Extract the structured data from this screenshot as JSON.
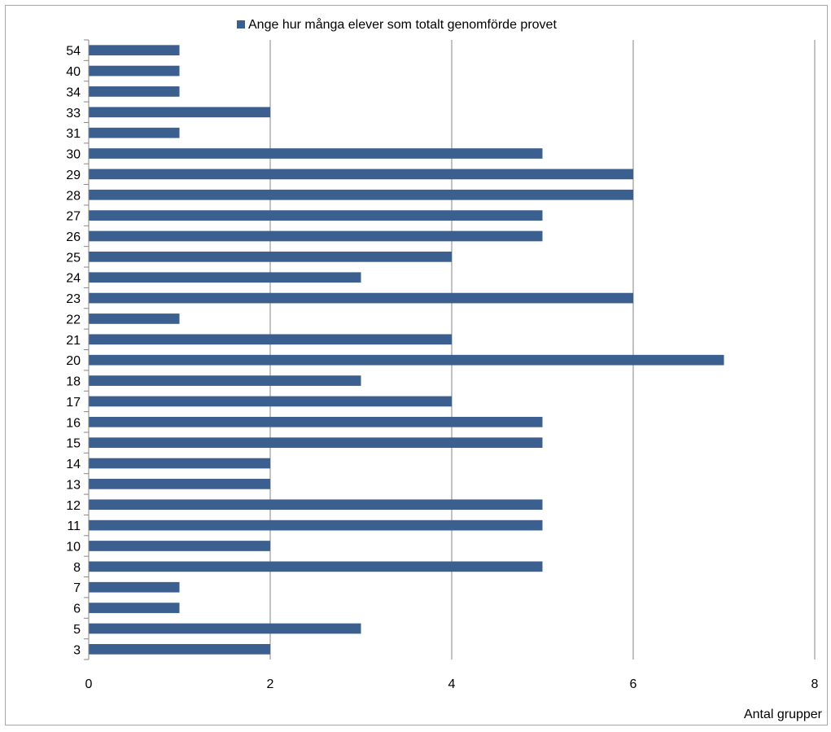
{
  "chart_data": {
    "type": "bar",
    "orientation": "horizontal",
    "title": "",
    "xlabel": "Antal grupper",
    "ylabel": "",
    "xlim": [
      0,
      8
    ],
    "xticks": [
      0,
      2,
      4,
      6,
      8
    ],
    "grid": "vertical",
    "legend_position": "top",
    "bar_color": "#3b5f8f",
    "categories": [
      "3",
      "5",
      "6",
      "7",
      "8",
      "10",
      "11",
      "12",
      "13",
      "14",
      "15",
      "16",
      "17",
      "18",
      "20",
      "21",
      "22",
      "23",
      "24",
      "25",
      "26",
      "27",
      "28",
      "29",
      "30",
      "31",
      "33",
      "34",
      "40",
      "54"
    ],
    "series": [
      {
        "name": "Ange hur många elever som totalt genomförde provet",
        "values": [
          2,
          3,
          1,
          1,
          5,
          2,
          5,
          5,
          2,
          2,
          5,
          5,
          4,
          3,
          7,
          4,
          1,
          6,
          3,
          4,
          5,
          5,
          6,
          6,
          5,
          1,
          2,
          1,
          1,
          1
        ]
      }
    ]
  }
}
